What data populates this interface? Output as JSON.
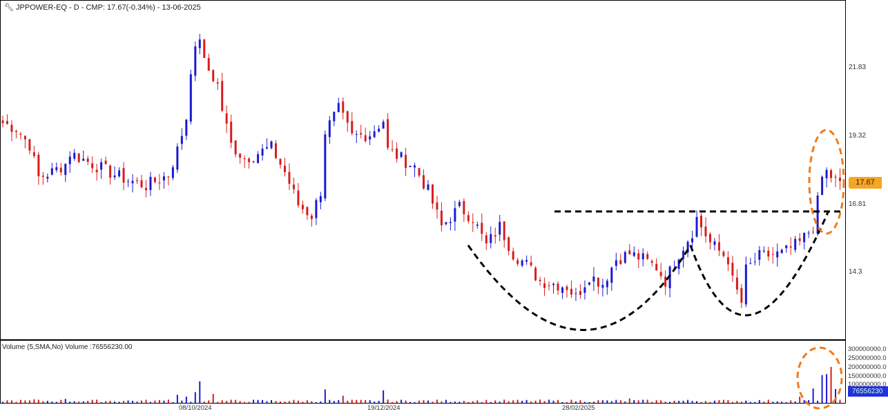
{
  "header": {
    "title": "JPPOWER-EQ - D - CMP: 17.67(-0.34%) - 13-06-2025",
    "icon": "wrench-icon"
  },
  "volume_panel": {
    "title": "Volume (5,SMA,No) Volume :76556230.00",
    "axis_labels": [
      "300000000.0",
      "250000000.0",
      "200000000.0",
      "150000000.0",
      "100000000.0"
    ],
    "current_tag": "76556230"
  },
  "chart_data": {
    "type": "candlestick",
    "symbol": "JPPOWER-EQ",
    "interval": "D",
    "cmp": "17.67",
    "cmp_value": 17.67,
    "price_ticks": [
      "21.83",
      "19.32",
      "16.81",
      "14.3"
    ],
    "price_tick_values": [
      21.83,
      19.32,
      16.81,
      14.3
    ],
    "ylim": [
      11.83,
      24.32
    ],
    "x_ticks": [
      {
        "label": "08/10/2024",
        "bar": 43
      },
      {
        "label": "19/12/2024",
        "bar": 85
      },
      {
        "label": "28/02/2025",
        "bar": 129
      }
    ],
    "bars": 188,
    "close_anchors": [
      [
        0,
        19.8
      ],
      [
        3,
        19.6
      ],
      [
        6,
        19.0
      ],
      [
        8,
        17.8
      ],
      [
        11,
        18.0
      ],
      [
        14,
        18.3
      ],
      [
        15,
        18.7
      ],
      [
        20,
        18.3
      ],
      [
        25,
        17.9
      ],
      [
        28,
        17.7
      ],
      [
        32,
        17.5
      ],
      [
        37,
        17.9
      ],
      [
        39,
        18.8
      ],
      [
        41,
        20.0
      ],
      [
        42,
        21.8
      ],
      [
        44,
        23.0
      ],
      [
        45,
        22.0
      ],
      [
        48,
        21.2
      ],
      [
        49,
        20.3
      ],
      [
        51,
        19.0
      ],
      [
        54,
        18.5
      ],
      [
        57,
        18.7
      ],
      [
        60,
        18.9
      ],
      [
        63,
        18.0
      ],
      [
        66,
        16.8
      ],
      [
        69,
        16.4
      ],
      [
        71,
        17.3
      ],
      [
        72,
        19.5
      ],
      [
        75,
        20.3
      ],
      [
        78,
        19.3
      ],
      [
        82,
        19.4
      ],
      [
        85,
        19.9
      ],
      [
        86,
        18.8
      ],
      [
        89,
        18.5
      ],
      [
        92,
        18.2
      ],
      [
        95,
        17.3
      ],
      [
        98,
        16.0
      ],
      [
        102,
        16.7
      ],
      [
        105,
        16.3
      ],
      [
        108,
        15.3
      ],
      [
        111,
        16.0
      ],
      [
        114,
        15.0
      ],
      [
        117,
        14.6
      ],
      [
        120,
        14.0
      ],
      [
        123,
        13.9
      ],
      [
        126,
        13.8
      ],
      [
        128,
        13.4
      ],
      [
        131,
        14.2
      ],
      [
        134,
        13.9
      ],
      [
        137,
        14.8
      ],
      [
        140,
        15.0
      ],
      [
        143,
        14.8
      ],
      [
        146,
        14.5
      ],
      [
        148,
        14.0
      ],
      [
        151,
        15.0
      ],
      [
        154,
        15.8
      ],
      [
        155,
        16.3
      ],
      [
        158,
        15.4
      ],
      [
        162,
        14.8
      ],
      [
        163,
        14.0
      ],
      [
        165,
        13.2
      ],
      [
        166,
        14.4
      ],
      [
        169,
        14.9
      ],
      [
        174,
        15.0
      ],
      [
        178,
        15.4
      ],
      [
        181,
        16.0
      ],
      [
        183,
        17.8
      ],
      [
        184,
        18.0
      ],
      [
        186,
        17.67
      ]
    ],
    "volume_spikes_millions": [
      [
        7,
        20
      ],
      [
        14,
        22
      ],
      [
        37,
        18
      ],
      [
        39,
        45
      ],
      [
        41,
        35
      ],
      [
        43,
        60
      ],
      [
        44,
        120
      ],
      [
        47,
        50
      ],
      [
        72,
        75
      ],
      [
        76,
        40
      ],
      [
        85,
        70
      ],
      [
        140,
        25
      ],
      [
        178,
        35
      ],
      [
        181,
        80
      ],
      [
        183,
        155
      ],
      [
        184,
        160
      ],
      [
        185,
        200
      ],
      [
        186,
        77
      ]
    ],
    "volume_base_millions": 8,
    "annotations": [
      "resistance-line",
      "cup-curve-1",
      "cup-curve-2",
      "breakout-ellipse",
      "volume-ellipse"
    ]
  }
}
